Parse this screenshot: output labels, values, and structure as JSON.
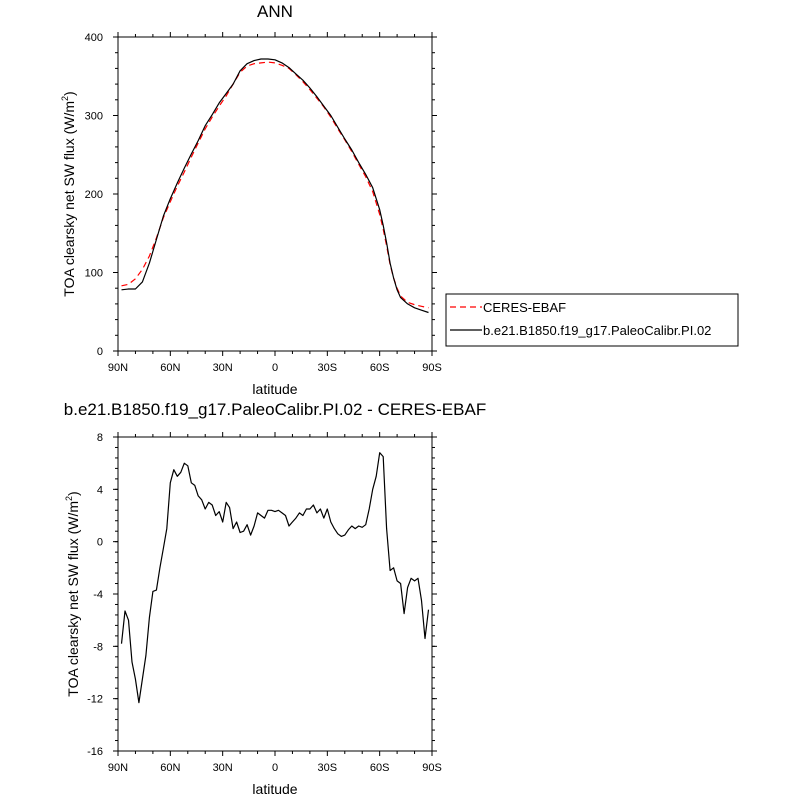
{
  "chart_data": [
    {
      "type": "line",
      "title": "ANN",
      "xlabel": "latitude",
      "ylabel": "TOA clearsky net SW flux (W/m",
      "ylabel_sup": "2",
      "ylabel_close": ")",
      "xlim": [
        90,
        -90
      ],
      "ylim": [
        0,
        400
      ],
      "xticks": [
        90,
        60,
        30,
        0,
        -30,
        -60,
        -90
      ],
      "xtick_labels": [
        "90N",
        "60N",
        "30N",
        "0",
        "30S",
        "60S",
        "90S"
      ],
      "yticks": [
        0,
        100,
        200,
        300,
        400
      ],
      "ytick_labels": [
        "0",
        "100",
        "200",
        "300",
        "400"
      ],
      "legend_position": "right",
      "series": [
        {
          "name": "CERES-EBAF",
          "color": "#ff0000",
          "style": "dashed",
          "x": [
            88,
            84,
            80,
            76,
            72,
            68,
            64,
            60,
            56,
            52,
            48,
            44,
            40,
            36,
            32,
            28,
            24,
            20,
            16,
            12,
            8,
            4,
            0,
            -4,
            -8,
            -12,
            -16,
            -20,
            -24,
            -28,
            -32,
            -36,
            -40,
            -44,
            -48,
            -52,
            -56,
            -60,
            -62,
            -64,
            -66,
            -68,
            -70,
            -72,
            -76,
            -80,
            -84,
            -88
          ],
          "y": [
            83,
            85,
            92,
            104,
            121,
            144,
            170,
            190,
            210,
            228,
            247,
            265,
            283,
            298,
            312,
            325,
            340,
            355,
            363,
            366,
            367,
            368,
            367,
            364,
            360,
            352,
            343,
            333,
            322,
            311,
            298,
            283,
            269,
            254,
            238,
            222,
            203,
            174,
            155,
            134,
            110,
            93,
            80,
            70,
            62,
            59,
            57,
            55
          ]
        },
        {
          "name": "b.e21.B1850.f19_g17.PaleoCalibr.PI.02",
          "color": "#000000",
          "style": "solid",
          "x": [
            88,
            84,
            80,
            76,
            72,
            68,
            64,
            60,
            56,
            52,
            48,
            44,
            40,
            36,
            32,
            28,
            24,
            20,
            16,
            12,
            8,
            4,
            0,
            -4,
            -8,
            -12,
            -16,
            -20,
            -24,
            -28,
            -32,
            -36,
            -40,
            -44,
            -48,
            -52,
            -56,
            -60,
            -62,
            -64,
            -66,
            -68,
            -70,
            -72,
            -76,
            -80,
            -84,
            -88
          ],
          "y": [
            78,
            79,
            79,
            88,
            112,
            142,
            172,
            194,
            214,
            233,
            251,
            268,
            287,
            301,
            316,
            328,
            340,
            357,
            366,
            370,
            372,
            372,
            371,
            367,
            361,
            353,
            345,
            335,
            324,
            312,
            300,
            285,
            270,
            256,
            240,
            225,
            208,
            180,
            160,
            138,
            112,
            93,
            78,
            68,
            60,
            55,
            52,
            49
          ]
        }
      ]
    },
    {
      "type": "line",
      "title": "b.e21.B1850.f19_g17.PaleoCalibr.PI.02 - CERES-EBAF",
      "xlabel": "latitude",
      "ylabel": "TOA clearsky net SW flux (W/m",
      "ylabel_sup": "2",
      "ylabel_close": ")",
      "xlim": [
        90,
        -90
      ],
      "ylim": [
        -16,
        8
      ],
      "xticks": [
        90,
        60,
        30,
        0,
        -30,
        -60,
        -90
      ],
      "xtick_labels": [
        "90N",
        "60N",
        "30N",
        "0",
        "30S",
        "60S",
        "90S"
      ],
      "yticks": [
        -16,
        -12,
        -8,
        -4,
        0,
        4,
        8
      ],
      "ytick_labels": [
        "-16",
        "-12",
        "-8",
        "-4",
        "0",
        "4",
        "8"
      ],
      "series": [
        {
          "name": "",
          "color": "#000000",
          "style": "solid",
          "x": [
            88,
            86,
            84,
            82,
            80,
            78,
            76,
            74,
            72,
            70,
            68,
            66,
            64,
            62,
            60,
            58,
            56,
            54,
            52,
            50,
            48,
            46,
            44,
            42,
            40,
            38,
            36,
            34,
            32,
            30,
            28,
            26,
            24,
            22,
            20,
            18,
            16,
            14,
            12,
            10,
            8,
            6,
            4,
            2,
            0,
            -2,
            -4,
            -6,
            -8,
            -10,
            -12,
            -14,
            -16,
            -18,
            -20,
            -22,
            -24,
            -26,
            -28,
            -30,
            -32,
            -34,
            -36,
            -38,
            -40,
            -42,
            -44,
            -46,
            -48,
            -50,
            -52,
            -54,
            -56,
            -58,
            -60,
            -62,
            -64,
            -66,
            -68,
            -70,
            -72,
            -74,
            -76,
            -78,
            -80,
            -82,
            -84,
            -86,
            -88
          ],
          "y": [
            -7.8,
            -5.3,
            -6.0,
            -9.2,
            -10.5,
            -12.3,
            -10.5,
            -8.7,
            -5.8,
            -3.8,
            -3.7,
            -2.0,
            -0.5,
            1.0,
            4.5,
            5.5,
            5.0,
            5.3,
            6.0,
            5.8,
            4.5,
            4.3,
            3.5,
            3.2,
            2.5,
            3.0,
            2.8,
            2.0,
            2.3,
            1.5,
            3.0,
            2.6,
            1.0,
            1.5,
            0.7,
            0.8,
            1.3,
            0.5,
            1.2,
            2.2,
            2.0,
            1.8,
            2.4,
            2.4,
            2.3,
            2.4,
            2.2,
            2.0,
            1.2,
            1.5,
            1.8,
            2.2,
            2.0,
            2.5,
            2.5,
            2.8,
            2.2,
            2.5,
            1.8,
            2.5,
            1.5,
            1.0,
            0.6,
            0.4,
            0.5,
            0.9,
            1.2,
            1.0,
            1.2,
            1.1,
            1.3,
            2.5,
            4.0,
            5.0,
            6.8,
            6.5,
            1.0,
            -2.2,
            -2.0,
            -3.0,
            -3.2,
            -5.5,
            -3.5,
            -2.8,
            -3.0,
            -2.8,
            -4.5,
            -7.4,
            -5.2
          ]
        }
      ]
    }
  ]
}
